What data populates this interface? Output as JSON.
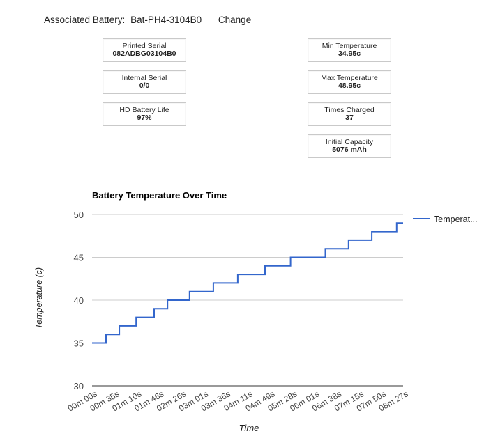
{
  "association": {
    "label": "Associated Battery:",
    "battery_id": "Bat-PH4-3104B0",
    "change_label": "Change"
  },
  "stats_left": [
    {
      "label": "Printed Serial",
      "value": "082ADBG03104B0",
      "tooltip": false
    },
    {
      "label": "Internal Serial",
      "value": "0/0",
      "tooltip": false
    },
    {
      "label": "HD Battery Life",
      "value": "97%",
      "tooltip": true
    }
  ],
  "stats_right": [
    {
      "label": "Min Temperature",
      "value": "34.95c",
      "tooltip": false
    },
    {
      "label": "Max Temperature",
      "value": "48.95c",
      "tooltip": false
    },
    {
      "label": "Times Charged",
      "value": "37",
      "tooltip": true
    },
    {
      "label": "Initial Capacity",
      "value": "5076 mAh",
      "tooltip": false
    }
  ],
  "chart_data": {
    "type": "line",
    "title": "Battery Temperature Over Time",
    "xlabel": "Time",
    "ylabel": "Temperature (c)",
    "ylim": [
      30,
      50
    ],
    "yticks": [
      30,
      35,
      40,
      45,
      50
    ],
    "x_tick_labels": [
      "00m 00s",
      "00m 35s",
      "01m 10s",
      "01m 46s",
      "02m 26s",
      "03m 01s",
      "03m 36s",
      "04m 11s",
      "04m 49s",
      "05m 28s",
      "06m 01s",
      "06m 38s",
      "07m 15s",
      "07m 50s",
      "08m 27s"
    ],
    "x_range_seconds": [
      0,
      536
    ],
    "legend": "right",
    "color": "#3366cc",
    "series": [
      {
        "name": "Temperat...",
        "points": [
          [
            0,
            35
          ],
          [
            24,
            35
          ],
          [
            24,
            36
          ],
          [
            47,
            36
          ],
          [
            47,
            37
          ],
          [
            76,
            37
          ],
          [
            76,
            38
          ],
          [
            107,
            38
          ],
          [
            107,
            39
          ],
          [
            130,
            39
          ],
          [
            130,
            40
          ],
          [
            168,
            40
          ],
          [
            168,
            41
          ],
          [
            209,
            41
          ],
          [
            209,
            42
          ],
          [
            251,
            42
          ],
          [
            251,
            43
          ],
          [
            298,
            43
          ],
          [
            298,
            44
          ],
          [
            342,
            44
          ],
          [
            342,
            45
          ],
          [
            402,
            45
          ],
          [
            402,
            46
          ],
          [
            442,
            46
          ],
          [
            442,
            47
          ],
          [
            482,
            47
          ],
          [
            482,
            48
          ],
          [
            525,
            48
          ],
          [
            525,
            49
          ],
          [
            536,
            49
          ]
        ]
      }
    ]
  }
}
